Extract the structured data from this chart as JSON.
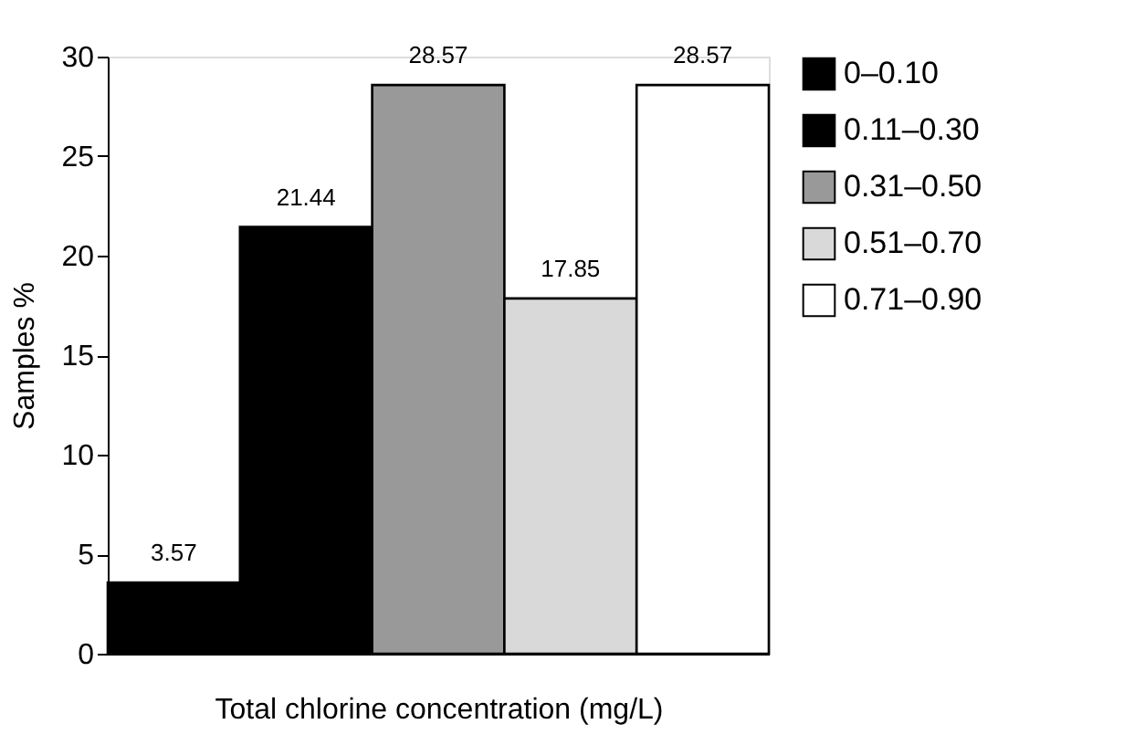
{
  "chart_data": {
    "type": "bar",
    "xlabel": "Total chlorine concentration (mg/L)",
    "ylabel": "Samples %",
    "categories": [
      null,
      null,
      null,
      null,
      null
    ],
    "series": [
      {
        "name": "0–0.10",
        "color": "#000000",
        "values": [
          3.57,
          null,
          null,
          null,
          null
        ]
      },
      {
        "name": "0.11–0.30",
        "color": "#000000",
        "values": [
          null,
          21.44,
          null,
          null,
          null
        ]
      },
      {
        "name": "0.31–0.50",
        "color": "#999999",
        "values": [
          null,
          null,
          28.57,
          null,
          null
        ]
      },
      {
        "name": "0.51–0.70",
        "color": "#d9d9d9",
        "values": [
          null,
          null,
          null,
          17.85,
          null
        ]
      },
      {
        "name": "0.71–0.90",
        "color": "#ffffff",
        "values": [
          null,
          null,
          null,
          null,
          28.57
        ]
      }
    ],
    "ylim": [
      0,
      30
    ],
    "yticks": [
      0,
      5,
      10,
      15,
      20,
      25,
      30
    ],
    "data_labels": true,
    "legend": "right",
    "grid": false
  }
}
